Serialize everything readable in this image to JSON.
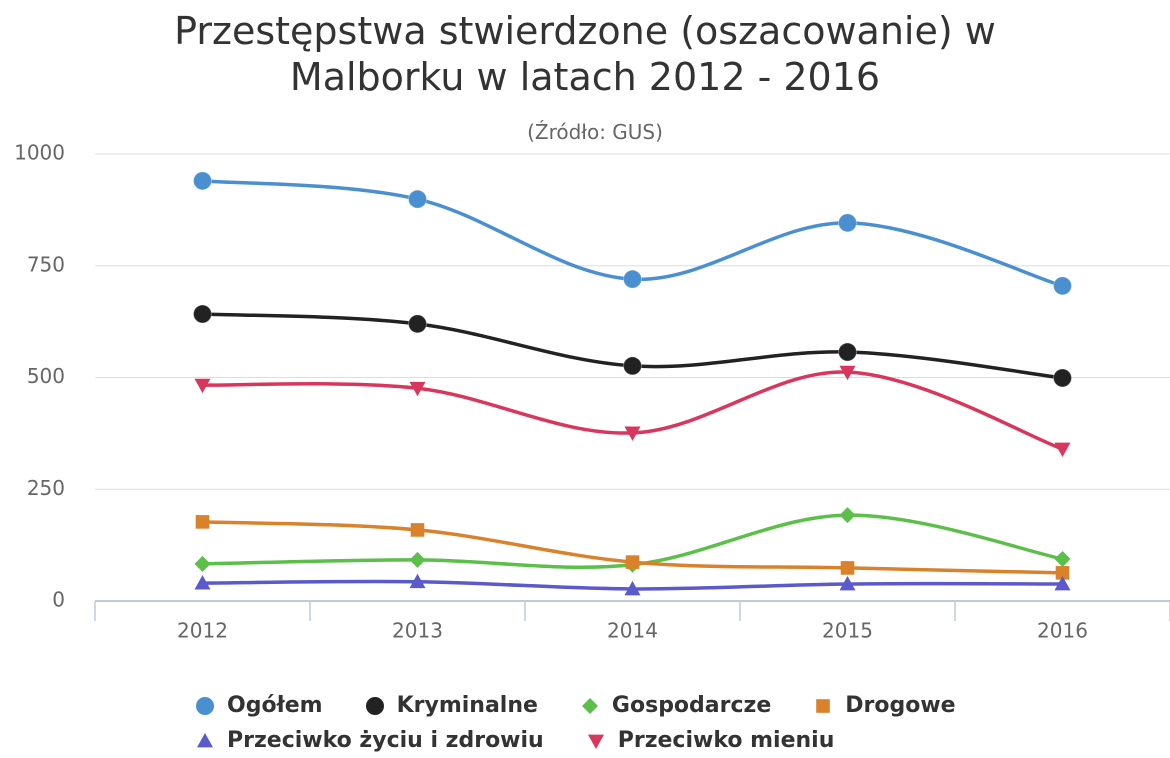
{
  "chart_data": {
    "type": "line",
    "title": "Przestępstwa stwierdzone (oszacowanie) w Malborku w latach 2012 - 2016",
    "subtitle": "(Źródło: GUS)",
    "categories": [
      "2012",
      "2013",
      "2014",
      "2015",
      "2016"
    ],
    "ylim": [
      0,
      1000
    ],
    "yticks": [
      0,
      250,
      500,
      750,
      1000
    ],
    "grid": true,
    "series": [
      {
        "name": "Ogółem",
        "color": "#4a8fd0",
        "symbol": "circle",
        "values": [
          940,
          899,
          720,
          846,
          705
        ]
      },
      {
        "name": "Kryminalne",
        "color": "#222222",
        "symbol": "circle",
        "values": [
          642,
          620,
          526,
          557,
          499
        ]
      },
      {
        "name": "Gospodarcze",
        "color": "#5cbf4a",
        "symbol": "diamond",
        "values": [
          83,
          92,
          81,
          192,
          94
        ]
      },
      {
        "name": "Drogowe",
        "color": "#d9822b",
        "symbol": "square",
        "values": [
          177,
          159,
          87,
          74,
          63
        ]
      },
      {
        "name": "Przeciwko życiu i zdrowiu",
        "color": "#5a5acc",
        "symbol": "triangle",
        "values": [
          40,
          43,
          27,
          38,
          38
        ]
      },
      {
        "name": "Przeciwko mieniu",
        "color": "#d9365e",
        "symbol": "triangle-down",
        "values": [
          483,
          476,
          376,
          512,
          340
        ]
      }
    ]
  }
}
